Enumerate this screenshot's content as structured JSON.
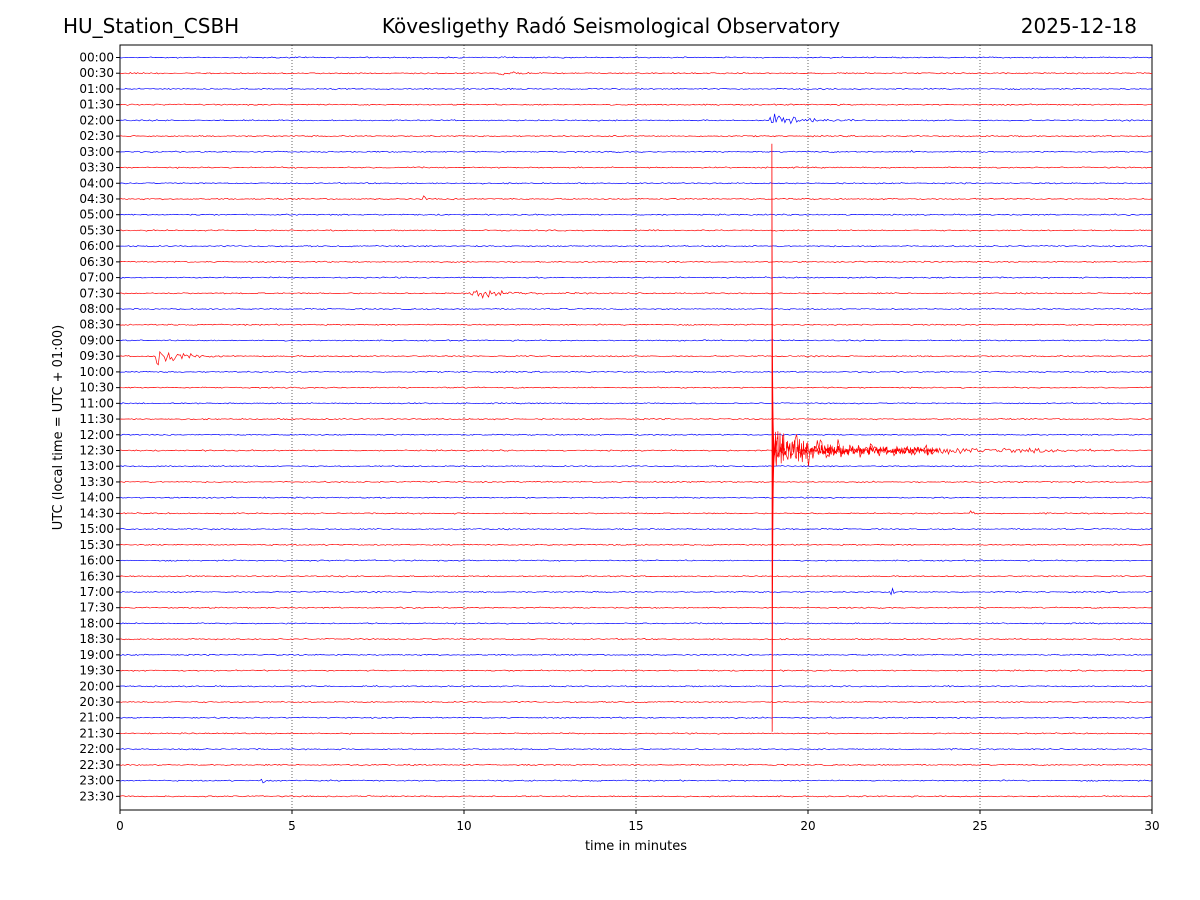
{
  "chart_data": {
    "type": "seismogram-helicorder",
    "station": "HU_Station_CSBH",
    "title": "Kövesligethy Radó Seismological Observatory",
    "date": "2025-12-18",
    "xlabel": "time in minutes",
    "ylabel": "UTC (local time = UTC + 01:00)",
    "xlim": [
      0,
      30
    ],
    "xticks": [
      0,
      5,
      10,
      15,
      20,
      25,
      30
    ],
    "grid_x": [
      5,
      10,
      15,
      20,
      25
    ],
    "row_colors": [
      "#0000ff",
      "#ff0000"
    ],
    "rows": [
      "00:00",
      "00:30",
      "01:00",
      "01:30",
      "02:00",
      "02:30",
      "03:00",
      "03:30",
      "04:00",
      "04:30",
      "05:00",
      "05:30",
      "06:00",
      "06:30",
      "07:00",
      "07:30",
      "08:00",
      "08:30",
      "09:00",
      "09:30",
      "10:00",
      "10:30",
      "11:00",
      "11:30",
      "12:00",
      "12:30",
      "13:00",
      "13:30",
      "14:00",
      "14:30",
      "15:00",
      "15:30",
      "16:00",
      "16:30",
      "17:00",
      "17:30",
      "18:00",
      "18:30",
      "19:00",
      "19:30",
      "20:00",
      "20:30",
      "21:00",
      "21:30",
      "22:00",
      "22:30",
      "23:00",
      "23:30"
    ],
    "events": [
      {
        "row": "00:30",
        "start_min": 11.0,
        "end_min": 12.8,
        "amplitude": 0.25
      },
      {
        "row": "02:00",
        "start_min": 18.9,
        "end_min": 21.5,
        "amplitude": 0.6
      },
      {
        "row": "03:00",
        "start_min": 23.0,
        "end_min": 23.4,
        "amplitude": 0.25
      },
      {
        "row": "04:30",
        "start_min": 8.8,
        "end_min": 9.3,
        "amplitude": 0.25
      },
      {
        "row": "07:30",
        "start_min": 10.2,
        "end_min": 14.0,
        "amplitude": 0.35
      },
      {
        "row": "09:30",
        "start_min": 1.0,
        "end_min": 3.3,
        "amplitude": 0.75
      },
      {
        "row": "12:30",
        "start_min": 18.95,
        "end_min": 29.0,
        "amplitude": 1.3
      },
      {
        "row": "14:30",
        "start_min": 24.7,
        "end_min": 25.3,
        "amplitude": 0.3
      },
      {
        "row": "17:00",
        "start_min": 22.4,
        "end_min": 22.9,
        "amplitude": 0.3
      },
      {
        "row": "21:00",
        "start_min": 20.6,
        "end_min": 20.7,
        "amplitude": 0.3
      },
      {
        "row": "23:00",
        "start_min": 4.1,
        "end_min": 4.6,
        "amplitude": 0.3
      },
      {
        "row": "23:30",
        "start_min": 7.2,
        "end_min": 7.3,
        "amplitude": 0.35
      }
    ],
    "main_spike": {
      "row": "12:30",
      "minute": 18.95,
      "top_row": "03:00",
      "bottom_row": "21:00"
    }
  }
}
